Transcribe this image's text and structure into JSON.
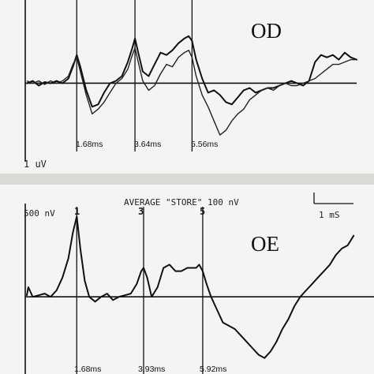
{
  "chart_data": [
    {
      "type": "line",
      "panel_label": "OD",
      "scale_label": "1 uV",
      "latency_labels": [
        "1.68ms",
        "3.64ms",
        "5.56ms"
      ],
      "peak_latencies_ms": [
        1.68,
        3.64,
        5.56
      ],
      "series": [
        {
          "x": [
            0.0,
            0.2,
            0.4,
            0.6,
            0.8,
            1.0,
            1.2,
            1.4,
            1.55,
            1.68,
            1.8,
            2.0,
            2.2,
            2.4,
            2.6,
            2.8,
            3.0,
            3.2,
            3.4,
            3.55,
            3.64,
            3.75,
            3.9,
            4.1,
            4.3,
            4.5,
            4.7,
            4.9,
            5.1,
            5.3,
            5.45,
            5.56,
            5.7,
            5.9,
            6.1,
            6.3,
            6.5,
            6.7,
            6.9,
            7.1,
            7.3,
            7.5,
            7.7,
            7.9,
            8.1,
            8.3,
            8.5,
            8.7,
            8.9,
            9.1,
            9.3,
            9.5,
            9.7,
            9.9,
            10.1,
            10.3,
            10.5,
            10.7,
            10.9,
            11.1
          ],
          "values": [
            0.0,
            0.1,
            -0.1,
            0.05,
            0.0,
            0.1,
            0.0,
            0.2,
            0.7,
            1.2,
            0.7,
            -0.3,
            -1.0,
            -0.9,
            -0.4,
            0.0,
            0.1,
            0.3,
            0.9,
            1.5,
            1.9,
            1.3,
            0.5,
            0.3,
            0.8,
            1.3,
            1.2,
            1.4,
            1.7,
            1.9,
            2.0,
            1.8,
            1.0,
            0.2,
            -0.4,
            -0.3,
            -0.5,
            -0.8,
            -0.9,
            -0.6,
            -0.3,
            -0.2,
            -0.4,
            -0.3,
            -0.2,
            -0.2,
            -0.1,
            0.0,
            0.1,
            0.0,
            -0.1,
            0.1,
            0.9,
            1.2,
            1.1,
            1.2,
            1.0,
            1.3,
            1.1,
            1.0
          ]
        },
        {
          "x": [
            0.0,
            0.2,
            0.4,
            0.6,
            0.8,
            1.0,
            1.2,
            1.4,
            1.55,
            1.68,
            1.8,
            2.0,
            2.2,
            2.4,
            2.6,
            2.8,
            3.0,
            3.2,
            3.4,
            3.55,
            3.64,
            3.75,
            3.9,
            4.1,
            4.3,
            4.5,
            4.7,
            4.9,
            5.1,
            5.3,
            5.45,
            5.56,
            5.7,
            5.9,
            6.1,
            6.3,
            6.5,
            6.7,
            6.9,
            7.1,
            7.3,
            7.5,
            7.7,
            7.9,
            8.1,
            8.3,
            8.5,
            8.7,
            8.9,
            9.1,
            9.3,
            9.5,
            9.7,
            9.9,
            10.1,
            10.3,
            10.5,
            10.7,
            10.9,
            11.1
          ],
          "values": [
            0.1,
            0.0,
            0.1,
            -0.05,
            0.1,
            0.0,
            0.1,
            0.3,
            0.8,
            1.1,
            0.5,
            -0.5,
            -1.3,
            -1.1,
            -0.8,
            -0.4,
            0.0,
            0.2,
            0.6,
            1.2,
            1.5,
            0.9,
            0.1,
            -0.3,
            -0.1,
            0.4,
            0.8,
            0.7,
            1.1,
            1.3,
            1.4,
            1.1,
            0.3,
            -0.5,
            -1.0,
            -1.6,
            -2.2,
            -2.0,
            -1.6,
            -1.3,
            -1.1,
            -0.7,
            -0.5,
            -0.3,
            -0.2,
            -0.3,
            -0.1,
            0.0,
            -0.1,
            -0.1,
            0.0,
            0.1,
            0.2,
            0.4,
            0.6,
            0.8,
            0.8,
            0.9,
            1.0,
            1.0
          ]
        }
      ],
      "xlabel": "",
      "ylabel": "",
      "xlim": [
        0,
        11.1
      ],
      "ylim": [
        -3.0,
        3.2
      ]
    },
    {
      "type": "line",
      "panel_label": "OE",
      "header_text": "AVERAGE \"STORE\" 100 nV",
      "scale_label": "500 nV",
      "time_scale_label": "1 mS",
      "marker_numbers": [
        "1",
        "3",
        "5"
      ],
      "latency_labels": [
        "1.68ms",
        "3.93ms",
        "5.92ms"
      ],
      "peak_latencies_ms": [
        1.68,
        3.93,
        5.92
      ],
      "series": [
        {
          "x": [
            0.0,
            0.05,
            0.2,
            0.4,
            0.6,
            0.8,
            1.0,
            1.2,
            1.4,
            1.55,
            1.68,
            1.8,
            1.95,
            2.1,
            2.3,
            2.5,
            2.7,
            2.9,
            3.1,
            3.3,
            3.5,
            3.7,
            3.85,
            3.93,
            4.05,
            4.2,
            4.4,
            4.6,
            4.8,
            5.0,
            5.2,
            5.4,
            5.55,
            5.7,
            5.8,
            5.92,
            6.05,
            6.2,
            6.4,
            6.6,
            6.8,
            7.0,
            7.2,
            7.4,
            7.6,
            7.8,
            8.0,
            8.2,
            8.4,
            8.6,
            8.8,
            9.0,
            9.2,
            9.4,
            9.6,
            9.8,
            10.0,
            10.2,
            10.4,
            10.6,
            10.8,
            11.0
          ],
          "values": [
            0.05,
            0.3,
            0.0,
            0.05,
            0.1,
            0.0,
            0.2,
            0.6,
            1.2,
            2.0,
            2.5,
            1.5,
            0.5,
            0.0,
            -0.15,
            0.0,
            0.1,
            -0.1,
            0.0,
            0.05,
            0.1,
            0.4,
            0.8,
            0.9,
            0.6,
            0.0,
            0.3,
            0.9,
            1.0,
            0.8,
            0.8,
            0.9,
            0.9,
            0.9,
            1.0,
            0.8,
            0.4,
            0.0,
            -0.4,
            -0.8,
            -0.9,
            -1.0,
            -1.2,
            -1.4,
            -1.6,
            -1.8,
            -1.9,
            -1.7,
            -1.4,
            -1.0,
            -0.7,
            -0.3,
            0.0,
            0.2,
            0.4,
            0.6,
            0.8,
            1.0,
            1.3,
            1.5,
            1.6,
            1.9
          ]
        }
      ],
      "xlabel": "",
      "ylabel": "",
      "xlim": [
        0,
        11.1
      ],
      "ylim": [
        -2.3,
        2.8
      ]
    }
  ]
}
